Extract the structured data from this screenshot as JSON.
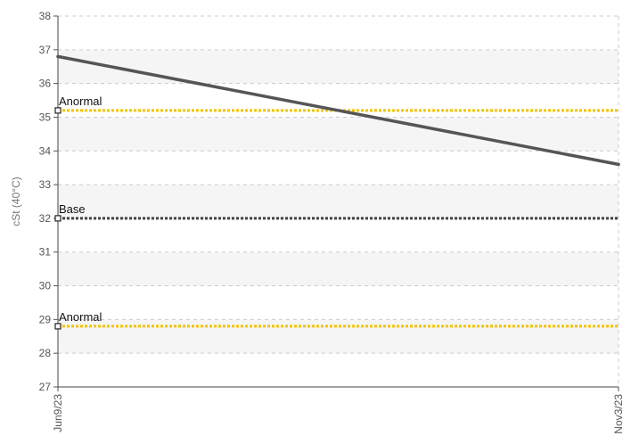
{
  "chart_data": {
    "type": "line",
    "title": "",
    "xlabel": "",
    "ylabel": "cSt (40°C)",
    "ylim": [
      27,
      38
    ],
    "yticks": [
      27,
      28,
      29,
      30,
      31,
      32,
      33,
      34,
      35,
      36,
      37,
      38
    ],
    "ytick_labels": [
      "27",
      "28",
      "29",
      "30",
      "31",
      "32",
      "33",
      "34",
      "35",
      "36",
      "37",
      "38"
    ],
    "xticks": [
      "Jun9/23",
      "Nov3/23"
    ],
    "x": [
      "2023-06-09",
      "2023-11-03"
    ],
    "series": [
      {
        "values": [
          36.8,
          33.6
        ],
        "color": "#555555"
      }
    ],
    "reference_lines": [
      {
        "label": "Anormal",
        "value": 35.2,
        "color": "#f2c400"
      },
      {
        "label": "Base",
        "value": 32.0,
        "color": "#444444"
      },
      {
        "label": "Anormal",
        "value": 28.8,
        "color": "#f2c400"
      }
    ],
    "grid": true,
    "legend": "none"
  }
}
